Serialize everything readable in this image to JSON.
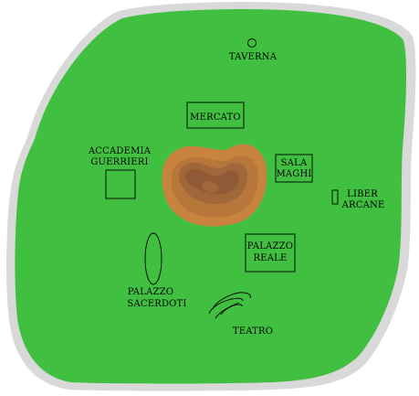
{
  "map": {
    "colors": {
      "border": "#d9d9d9",
      "land": "#40bf40",
      "hill_outer": "#c8843e",
      "hill_mid": "#b8773a",
      "hill_inner": "#a0673a",
      "hill_core": "#8f5a35",
      "ink": "#000000"
    },
    "locations": {
      "taverna": {
        "label": "TAVERNA",
        "icon": "circle-icon"
      },
      "mercato": {
        "label": "MERCATO",
        "icon": "square-frame"
      },
      "accademia": {
        "line1": "ACCADEMIA",
        "line2": "GUERRIERI",
        "icon": "square-icon"
      },
      "sala_maghi": {
        "line1": "SALA",
        "line2": "MAGHI",
        "icon": "square-frame"
      },
      "liber_arcane": {
        "line1": "LIBER",
        "line2": "ARCANE",
        "icon": "small-rectangle-icon"
      },
      "palazzo_reale": {
        "line1": "PALAZZO",
        "line2": "REALE",
        "icon": "square-frame"
      },
      "palazzo_sacerdoti": {
        "line1": "PALAZZO",
        "line2": "SACERDOTI",
        "icon": "oval-icon"
      },
      "teatro": {
        "label": "TEATRO",
        "icon": "spiral-icon"
      }
    }
  }
}
